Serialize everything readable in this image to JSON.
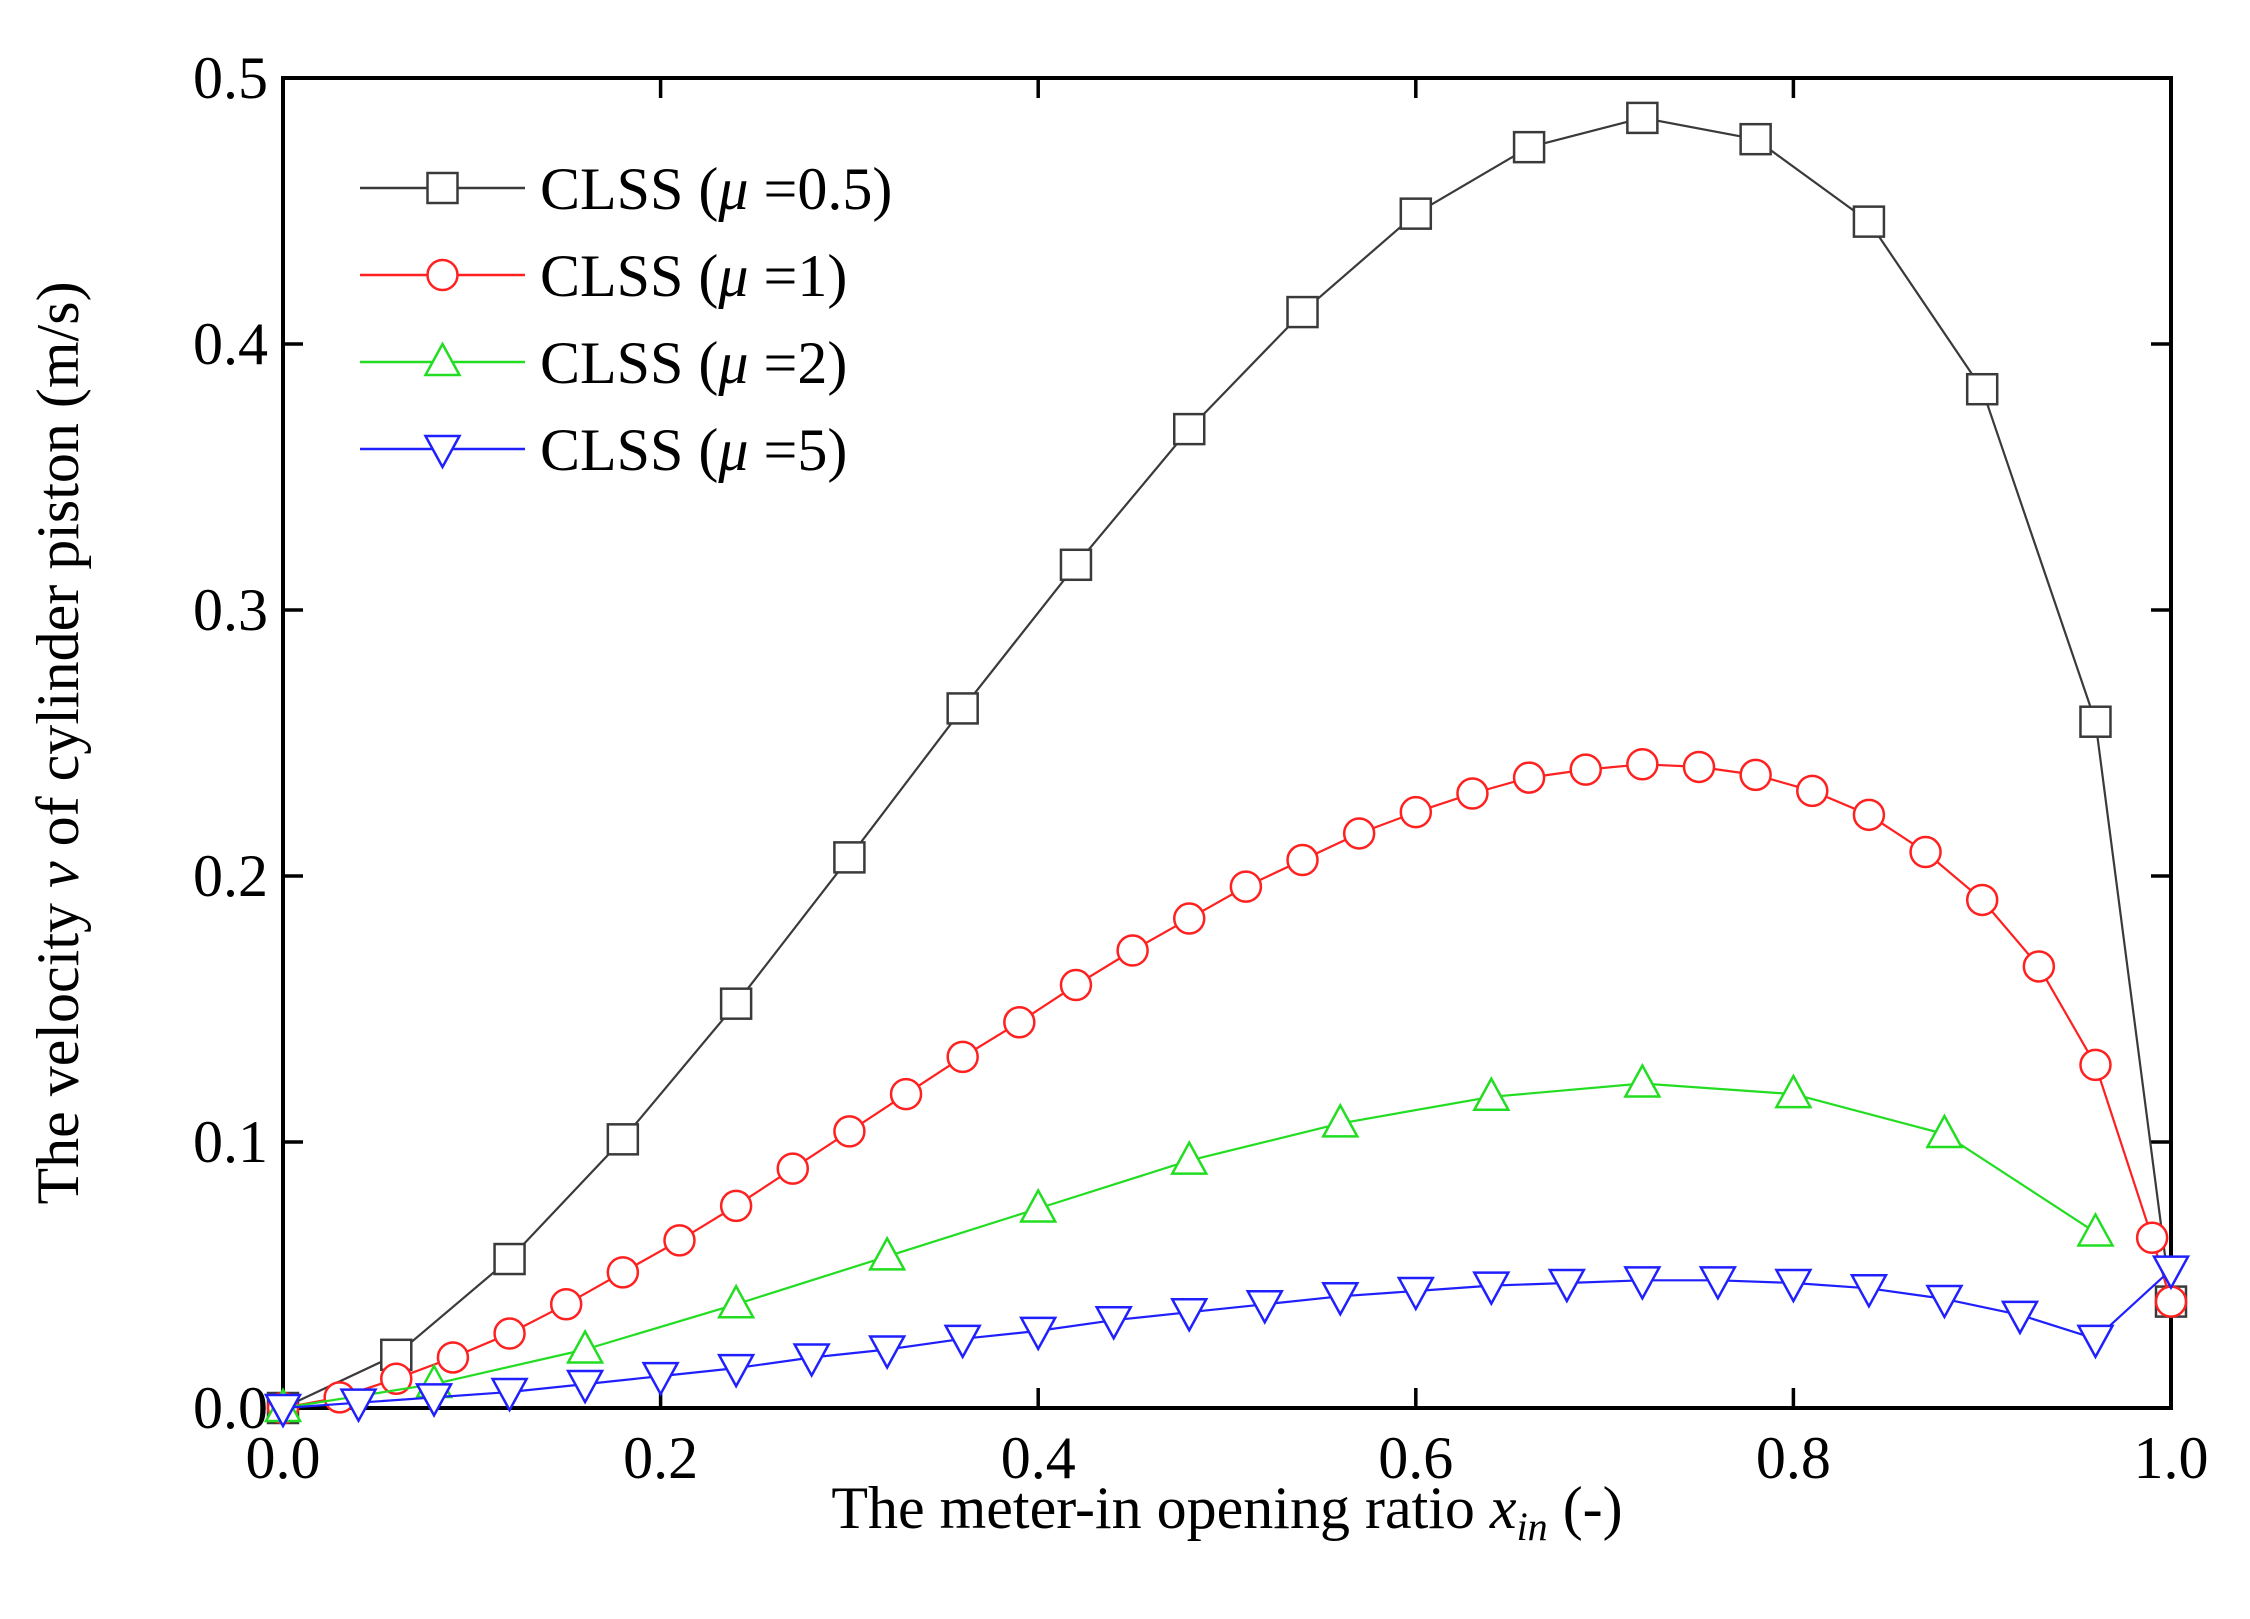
{
  "chart_data": {
    "type": "line",
    "title": "",
    "xlabel_prefix": "The meter-in opening ratio ",
    "xlabel_var": "x",
    "xlabel_sub": "in",
    "xlabel_suffix": " (-)",
    "ylabel_prefix": "The velocity ",
    "ylabel_var": "v",
    "ylabel_suffix": " of cylinder piston (m/s)",
    "xlim": [
      0.0,
      1.0
    ],
    "ylim": [
      0.0,
      0.5
    ],
    "xticks": [
      "0.0",
      "0.2",
      "0.4",
      "0.6",
      "0.8",
      "1.0"
    ],
    "yticks": [
      "0.0",
      "0.1",
      "0.2",
      "0.3",
      "0.4",
      "0.5"
    ],
    "legend_position": "top-left",
    "series": [
      {
        "name": "CLSS (μ =0.5)",
        "legend_prefix": "CLSS (",
        "legend_mu": "μ",
        "legend_suffix": " =0.5)",
        "color": "#3a3a3a",
        "marker": "square",
        "x": [
          0.0,
          0.06,
          0.12,
          0.18,
          0.24,
          0.3,
          0.36,
          0.42,
          0.48,
          0.54,
          0.6,
          0.66,
          0.72,
          0.78,
          0.84,
          0.9,
          0.96,
          1.0
        ],
        "values": [
          0.0,
          0.02,
          0.056,
          0.101,
          0.152,
          0.207,
          0.263,
          0.317,
          0.368,
          0.412,
          0.449,
          0.474,
          0.485,
          0.477,
          0.446,
          0.383,
          0.258,
          0.04
        ]
      },
      {
        "name": "CLSS (μ =1)",
        "legend_prefix": "CLSS (",
        "legend_mu": "μ",
        "legend_suffix": " =1)",
        "color": "#ff2020",
        "marker": "circle",
        "x": [
          0.0,
          0.03,
          0.06,
          0.09,
          0.12,
          0.15,
          0.18,
          0.21,
          0.24,
          0.27,
          0.3,
          0.33,
          0.36,
          0.39,
          0.42,
          0.45,
          0.48,
          0.51,
          0.54,
          0.57,
          0.6,
          0.63,
          0.66,
          0.69,
          0.72,
          0.75,
          0.78,
          0.81,
          0.84,
          0.87,
          0.9,
          0.93,
          0.96,
          0.99,
          1.0
        ],
        "values": [
          0.0,
          0.004,
          0.011,
          0.019,
          0.028,
          0.039,
          0.051,
          0.063,
          0.076,
          0.09,
          0.104,
          0.118,
          0.132,
          0.145,
          0.159,
          0.172,
          0.184,
          0.196,
          0.206,
          0.216,
          0.224,
          0.231,
          0.237,
          0.24,
          0.242,
          0.241,
          0.238,
          0.232,
          0.223,
          0.209,
          0.191,
          0.166,
          0.129,
          0.064,
          0.04
        ]
      },
      {
        "name": "CLSS (μ =2)",
        "legend_prefix": "CLSS (",
        "legend_mu": "μ",
        "legend_suffix": " =2)",
        "color": "#22dd22",
        "marker": "triangle-up",
        "x": [
          0.0,
          0.08,
          0.16,
          0.24,
          0.32,
          0.4,
          0.48,
          0.56,
          0.64,
          0.72,
          0.8,
          0.88,
          0.96
        ],
        "values": [
          0.0,
          0.009,
          0.022,
          0.039,
          0.057,
          0.075,
          0.093,
          0.107,
          0.117,
          0.122,
          0.118,
          0.103,
          0.066
        ]
      },
      {
        "name": "CLSS (μ =5)",
        "legend_prefix": "CLSS (",
        "legend_mu": "μ",
        "legend_suffix": " =5)",
        "color": "#2020ff",
        "marker": "triangle-down",
        "x": [
          0.0,
          0.04,
          0.08,
          0.12,
          0.16,
          0.2,
          0.24,
          0.28,
          0.32,
          0.36,
          0.4,
          0.44,
          0.48,
          0.52,
          0.56,
          0.6,
          0.64,
          0.68,
          0.72,
          0.76,
          0.8,
          0.84,
          0.88,
          0.92,
          0.96,
          1.0
        ],
        "values": [
          0.0,
          0.002,
          0.004,
          0.006,
          0.009,
          0.012,
          0.015,
          0.019,
          0.022,
          0.026,
          0.029,
          0.033,
          0.036,
          0.039,
          0.042,
          0.044,
          0.046,
          0.047,
          0.048,
          0.048,
          0.047,
          0.045,
          0.041,
          0.035,
          0.026,
          0.052
        ]
      }
    ]
  }
}
